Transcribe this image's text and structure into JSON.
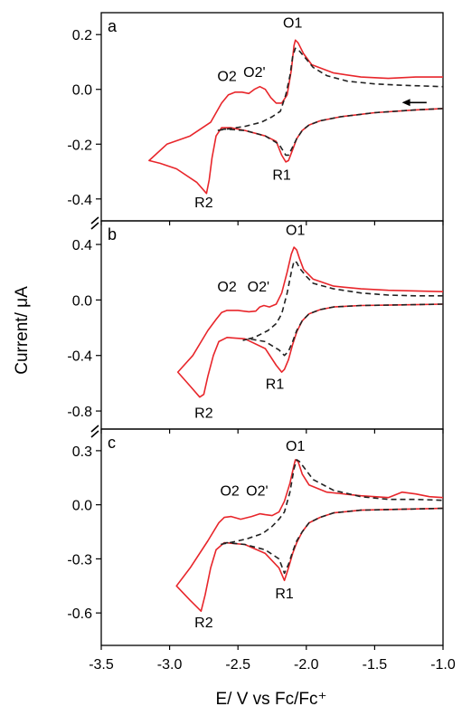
{
  "chart_data": {
    "type": "line",
    "xlabel": "E/ V vs Fc/Fc⁺",
    "ylabel": "Current/ μA",
    "xlim": [
      -3.5,
      -1.0
    ],
    "xticks": [
      -3.5,
      -3.0,
      -2.5,
      -2.0,
      -1.5,
      -1.0
    ],
    "xtick_labels": [
      "-3.5",
      "-3.0",
      "-2.5",
      "-2.0",
      "-1.5",
      "-1.0"
    ],
    "grid": false,
    "colors": {
      "solid": "#e8262b",
      "dashed": "#222222",
      "axis": "#000000"
    },
    "panels": [
      {
        "label": "a",
        "ylim": [
          -0.48,
          0.28
        ],
        "yticks": [
          0.2,
          0.0,
          -0.2,
          -0.4
        ],
        "ytick_labels": [
          "0.2",
          "0.0",
          "-0.2",
          "-0.4"
        ],
        "annotations": [
          {
            "text": "O1",
            "x": -2.1,
            "y": 0.225
          },
          {
            "text": "O2",
            "x": -2.58,
            "y": 0.03
          },
          {
            "text": "O2'",
            "x": -2.38,
            "y": 0.045
          },
          {
            "text": "R1",
            "x": -2.18,
            "y": -0.33
          },
          {
            "text": "R2",
            "x": -2.75,
            "y": -0.43
          }
        ],
        "arrow": {
          "x_from": -1.12,
          "x_to": -1.3,
          "y": -0.048
        },
        "series": [
          {
            "style": "solid",
            "x": [
              -1.0,
              -1.2,
              -1.5,
              -1.75,
              -1.9,
              -1.98,
              -2.03,
              -2.07,
              -2.1,
              -2.13,
              -2.15,
              -2.18,
              -2.22,
              -2.3,
              -2.45,
              -2.55,
              -2.62,
              -2.66,
              -2.69,
              -2.71,
              -2.73,
              -2.8,
              -2.95,
              -3.07,
              -3.15,
              -3.02,
              -2.85,
              -2.7,
              -2.62,
              -2.57,
              -2.52,
              -2.47,
              -2.42,
              -2.38,
              -2.34,
              -2.3,
              -2.26,
              -2.22,
              -2.18,
              -2.14,
              -2.11,
              -2.09,
              -2.08,
              -2.06,
              -2.02,
              -1.96,
              -1.8,
              -1.6,
              -1.4,
              -1.2,
              -1.0
            ],
            "y": [
              -0.07,
              -0.075,
              -0.085,
              -0.1,
              -0.115,
              -0.13,
              -0.15,
              -0.18,
              -0.22,
              -0.26,
              -0.265,
              -0.24,
              -0.19,
              -0.17,
              -0.15,
              -0.14,
              -0.14,
              -0.17,
              -0.25,
              -0.33,
              -0.38,
              -0.34,
              -0.29,
              -0.27,
              -0.26,
              -0.2,
              -0.17,
              -0.12,
              -0.05,
              -0.02,
              -0.01,
              -0.01,
              -0.015,
              0.0,
              0.01,
              0.0,
              -0.03,
              -0.05,
              -0.05,
              -0.02,
              0.07,
              0.16,
              0.18,
              0.17,
              0.13,
              0.09,
              0.06,
              0.045,
              0.04,
              0.045,
              0.045
            ]
          },
          {
            "style": "dashed",
            "x": [
              -1.0,
              -1.2,
              -1.5,
              -1.75,
              -1.9,
              -1.98,
              -2.03,
              -2.07,
              -2.1,
              -2.13,
              -2.15,
              -2.2,
              -2.3,
              -2.45,
              -2.6,
              -2.65,
              -2.58,
              -2.45,
              -2.33,
              -2.25,
              -2.19,
              -2.15,
              -2.12,
              -2.1,
              -2.08,
              -2.05,
              -2.0,
              -1.95,
              -1.85,
              -1.7,
              -1.5,
              -1.3,
              -1.0
            ],
            "y": [
              -0.07,
              -0.075,
              -0.085,
              -0.1,
              -0.115,
              -0.13,
              -0.15,
              -0.18,
              -0.21,
              -0.24,
              -0.24,
              -0.2,
              -0.17,
              -0.15,
              -0.145,
              -0.15,
              -0.145,
              -0.135,
              -0.12,
              -0.1,
              -0.08,
              -0.02,
              0.05,
              0.12,
              0.15,
              0.14,
              0.11,
              0.08,
              0.05,
              0.03,
              0.02,
              0.015,
              0.01
            ]
          }
        ]
      },
      {
        "label": "b",
        "ylim": [
          -0.93,
          0.57
        ],
        "yticks": [
          0.4,
          0.0,
          -0.4,
          -0.8
        ],
        "ytick_labels": [
          "0.4",
          "0.0",
          "-0.4",
          "-0.8"
        ],
        "annotations": [
          {
            "text": "O1",
            "x": -2.08,
            "y": 0.47
          },
          {
            "text": "O2",
            "x": -2.58,
            "y": 0.06
          },
          {
            "text": "O2'",
            "x": -2.35,
            "y": 0.06
          },
          {
            "text": "R1",
            "x": -2.23,
            "y": -0.64
          },
          {
            "text": "R2",
            "x": -2.75,
            "y": -0.85
          }
        ],
        "series": [
          {
            "style": "solid",
            "x": [
              -1.0,
              -1.3,
              -1.6,
              -1.8,
              -1.9,
              -1.98,
              -2.03,
              -2.07,
              -2.1,
              -2.13,
              -2.16,
              -2.18,
              -2.22,
              -2.3,
              -2.45,
              -2.58,
              -2.64,
              -2.68,
              -2.72,
              -2.75,
              -2.78,
              -2.85,
              -2.94,
              -2.83,
              -2.72,
              -2.66,
              -2.62,
              -2.58,
              -2.5,
              -2.42,
              -2.37,
              -2.34,
              -2.31,
              -2.27,
              -2.22,
              -2.18,
              -2.14,
              -2.11,
              -2.09,
              -2.07,
              -2.05,
              -2.02,
              -1.95,
              -1.8,
              -1.6,
              -1.4,
              -1.2,
              -1.0
            ],
            "y": [
              -0.03,
              -0.035,
              -0.04,
              -0.05,
              -0.07,
              -0.1,
              -0.15,
              -0.23,
              -0.32,
              -0.43,
              -0.5,
              -0.52,
              -0.47,
              -0.35,
              -0.28,
              -0.27,
              -0.3,
              -0.4,
              -0.55,
              -0.68,
              -0.7,
              -0.62,
              -0.52,
              -0.4,
              -0.22,
              -0.14,
              -0.09,
              -0.075,
              -0.075,
              -0.085,
              -0.08,
              -0.05,
              -0.04,
              -0.05,
              -0.03,
              0.05,
              0.2,
              0.33,
              0.38,
              0.36,
              0.3,
              0.22,
              0.15,
              0.1,
              0.08,
              0.07,
              0.065,
              0.06
            ]
          },
          {
            "style": "dashed",
            "x": [
              -1.0,
              -1.3,
              -1.6,
              -1.8,
              -1.9,
              -1.98,
              -2.03,
              -2.07,
              -2.1,
              -2.13,
              -2.16,
              -2.2,
              -2.3,
              -2.42,
              -2.46,
              -2.38,
              -2.28,
              -2.22,
              -2.18,
              -2.14,
              -2.11,
              -2.09,
              -2.07,
              -2.05,
              -2.0,
              -1.95,
              -1.8,
              -1.6,
              -1.4,
              -1.2,
              -1.0
            ],
            "y": [
              -0.03,
              -0.035,
              -0.04,
              -0.05,
              -0.07,
              -0.1,
              -0.15,
              -0.22,
              -0.3,
              -0.37,
              -0.4,
              -0.36,
              -0.3,
              -0.28,
              -0.29,
              -0.27,
              -0.22,
              -0.17,
              -0.1,
              0.05,
              0.2,
              0.28,
              0.27,
              0.23,
              0.17,
              0.12,
              0.08,
              0.05,
              0.035,
              0.03,
              0.03
            ]
          }
        ]
      },
      {
        "label": "c",
        "ylim": [
          -0.78,
          0.42
        ],
        "yticks": [
          0.3,
          0.0,
          -0.3,
          -0.6
        ],
        "ytick_labels": [
          "0.3",
          "0.0",
          "-0.3",
          "-0.6"
        ],
        "annotations": [
          {
            "text": "O1",
            "x": -2.08,
            "y": 0.3
          },
          {
            "text": "O2",
            "x": -2.56,
            "y": 0.05
          },
          {
            "text": "O2'",
            "x": -2.36,
            "y": 0.05
          },
          {
            "text": "R1",
            "x": -2.16,
            "y": -0.52
          },
          {
            "text": "R2",
            "x": -2.75,
            "y": -0.68
          }
        ],
        "series": [
          {
            "style": "solid",
            "x": [
              -1.0,
              -1.3,
              -1.6,
              -1.8,
              -1.9,
              -1.98,
              -2.03,
              -2.07,
              -2.1,
              -2.13,
              -2.16,
              -2.2,
              -2.3,
              -2.45,
              -2.6,
              -2.66,
              -2.7,
              -2.74,
              -2.77,
              -2.85,
              -2.95,
              -2.85,
              -2.72,
              -2.64,
              -2.6,
              -2.55,
              -2.48,
              -2.4,
              -2.34,
              -2.3,
              -2.25,
              -2.2,
              -2.16,
              -2.12,
              -2.09,
              -2.08,
              -2.06,
              -2.03,
              -1.98,
              -1.85,
              -1.6,
              -1.4,
              -1.3,
              -1.2,
              -1.1,
              -1.0
            ],
            "y": [
              -0.02,
              -0.025,
              -0.03,
              -0.045,
              -0.07,
              -0.1,
              -0.15,
              -0.21,
              -0.27,
              -0.35,
              -0.42,
              -0.35,
              -0.27,
              -0.22,
              -0.21,
              -0.25,
              -0.35,
              -0.5,
              -0.59,
              -0.53,
              -0.45,
              -0.35,
              -0.2,
              -0.1,
              -0.07,
              -0.065,
              -0.08,
              -0.065,
              -0.05,
              -0.055,
              -0.06,
              -0.04,
              0.02,
              0.12,
              0.22,
              0.25,
              0.24,
              0.17,
              0.11,
              0.07,
              0.05,
              0.04,
              0.07,
              0.06,
              0.045,
              0.04
            ]
          },
          {
            "style": "dashed",
            "x": [
              -1.0,
              -1.3,
              -1.6,
              -1.8,
              -1.9,
              -1.98,
              -2.03,
              -2.07,
              -2.1,
              -2.13,
              -2.16,
              -2.2,
              -2.3,
              -2.45,
              -2.58,
              -2.63,
              -2.56,
              -2.44,
              -2.32,
              -2.25,
              -2.2,
              -2.16,
              -2.12,
              -2.09,
              -2.07,
              -2.05,
              -2.0,
              -1.95,
              -1.8,
              -1.6,
              -1.4,
              -1.2,
              -1.0
            ],
            "y": [
              -0.02,
              -0.025,
              -0.03,
              -0.045,
              -0.07,
              -0.1,
              -0.15,
              -0.2,
              -0.26,
              -0.33,
              -0.38,
              -0.3,
              -0.25,
              -0.22,
              -0.21,
              -0.22,
              -0.21,
              -0.19,
              -0.16,
              -0.12,
              -0.08,
              -0.04,
              0.07,
              0.2,
              0.25,
              0.24,
              0.19,
              0.14,
              0.08,
              0.045,
              0.03,
              0.03,
              0.025
            ]
          }
        ]
      }
    ]
  }
}
